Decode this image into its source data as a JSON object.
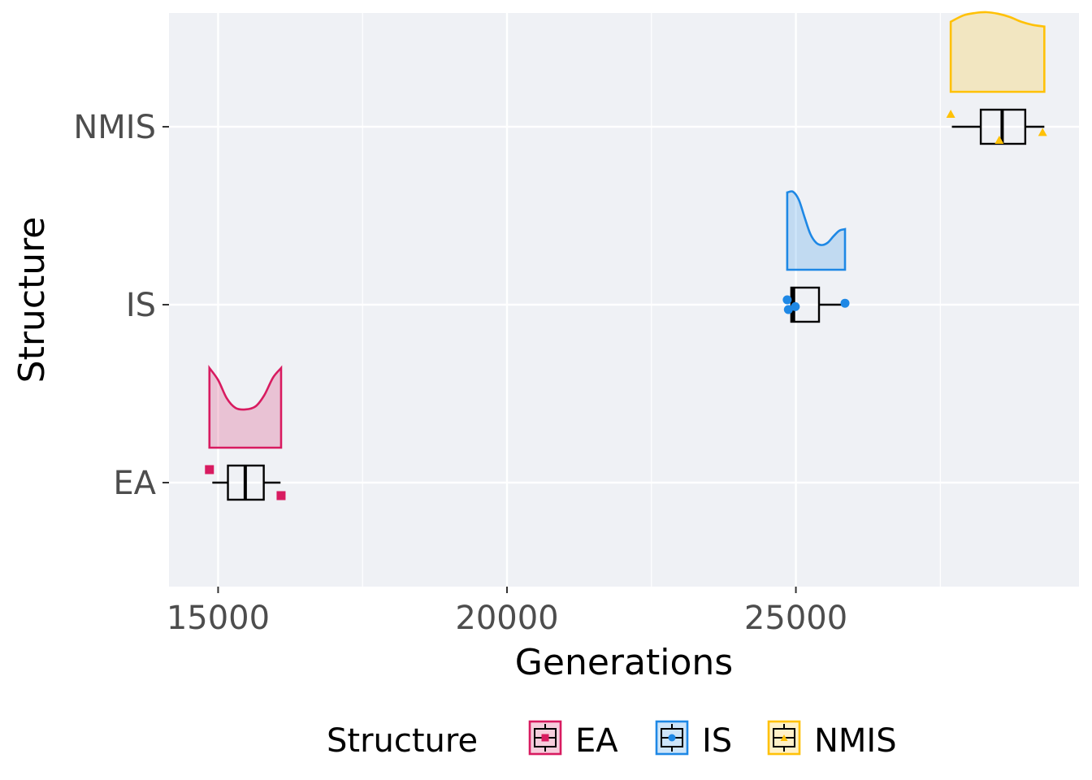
{
  "chart_data": {
    "type": "raincloud",
    "orientation": "horizontal",
    "xlabel": "Generations",
    "ylabel": "Structure",
    "xlim": [
      14150,
      29900
    ],
    "x_ticks": [
      15000,
      20000,
      25000
    ],
    "categories": [
      "EA",
      "IS",
      "NMIS"
    ],
    "grid": true,
    "legend": {
      "title": "Structure",
      "position": "bottom",
      "entries": [
        "EA",
        "IS",
        "NMIS"
      ]
    },
    "series": [
      {
        "name": "EA",
        "color": "#d81b60",
        "marker": "square",
        "box": {
          "min": 14900,
          "q1": 15170,
          "median": 15470,
          "q3": 15790,
          "max": 16080
        },
        "points": [
          14850,
          16090
        ],
        "density": {
          "x": [
            14850,
            15000,
            15150,
            15300,
            15470,
            15650,
            15800,
            15950,
            16090
          ],
          "y": [
            1.0,
            0.85,
            0.62,
            0.5,
            0.48,
            0.52,
            0.66,
            0.88,
            1.0
          ]
        }
      },
      {
        "name": "IS",
        "color": "#1e88e5",
        "marker": "circle",
        "box": {
          "min": 24910,
          "q1": 24920,
          "median": 24960,
          "q3": 25400,
          "max": 25850
        },
        "points": [
          24850,
          24870,
          24990,
          25850
        ],
        "density": {
          "x": [
            24850,
            24950,
            25050,
            25150,
            25250,
            25350,
            25450,
            25550,
            25650,
            25750,
            25850
          ],
          "y": [
            0.97,
            0.98,
            0.88,
            0.66,
            0.45,
            0.34,
            0.31,
            0.34,
            0.42,
            0.49,
            0.51
          ]
        }
      },
      {
        "name": "NMIS",
        "color": "#ffc107",
        "marker": "triangle",
        "box": {
          "min": 27700,
          "q1": 28200,
          "median": 28570,
          "q3": 28970,
          "max": 29300
        },
        "points": [
          27680,
          28520,
          29270
        ],
        "density": {
          "x": [
            27680,
            27900,
            28100,
            28300,
            28500,
            28700,
            28900,
            29100,
            29300
          ],
          "y": [
            0.88,
            0.96,
            0.99,
            1.0,
            0.98,
            0.94,
            0.88,
            0.84,
            0.82
          ]
        }
      }
    ]
  }
}
